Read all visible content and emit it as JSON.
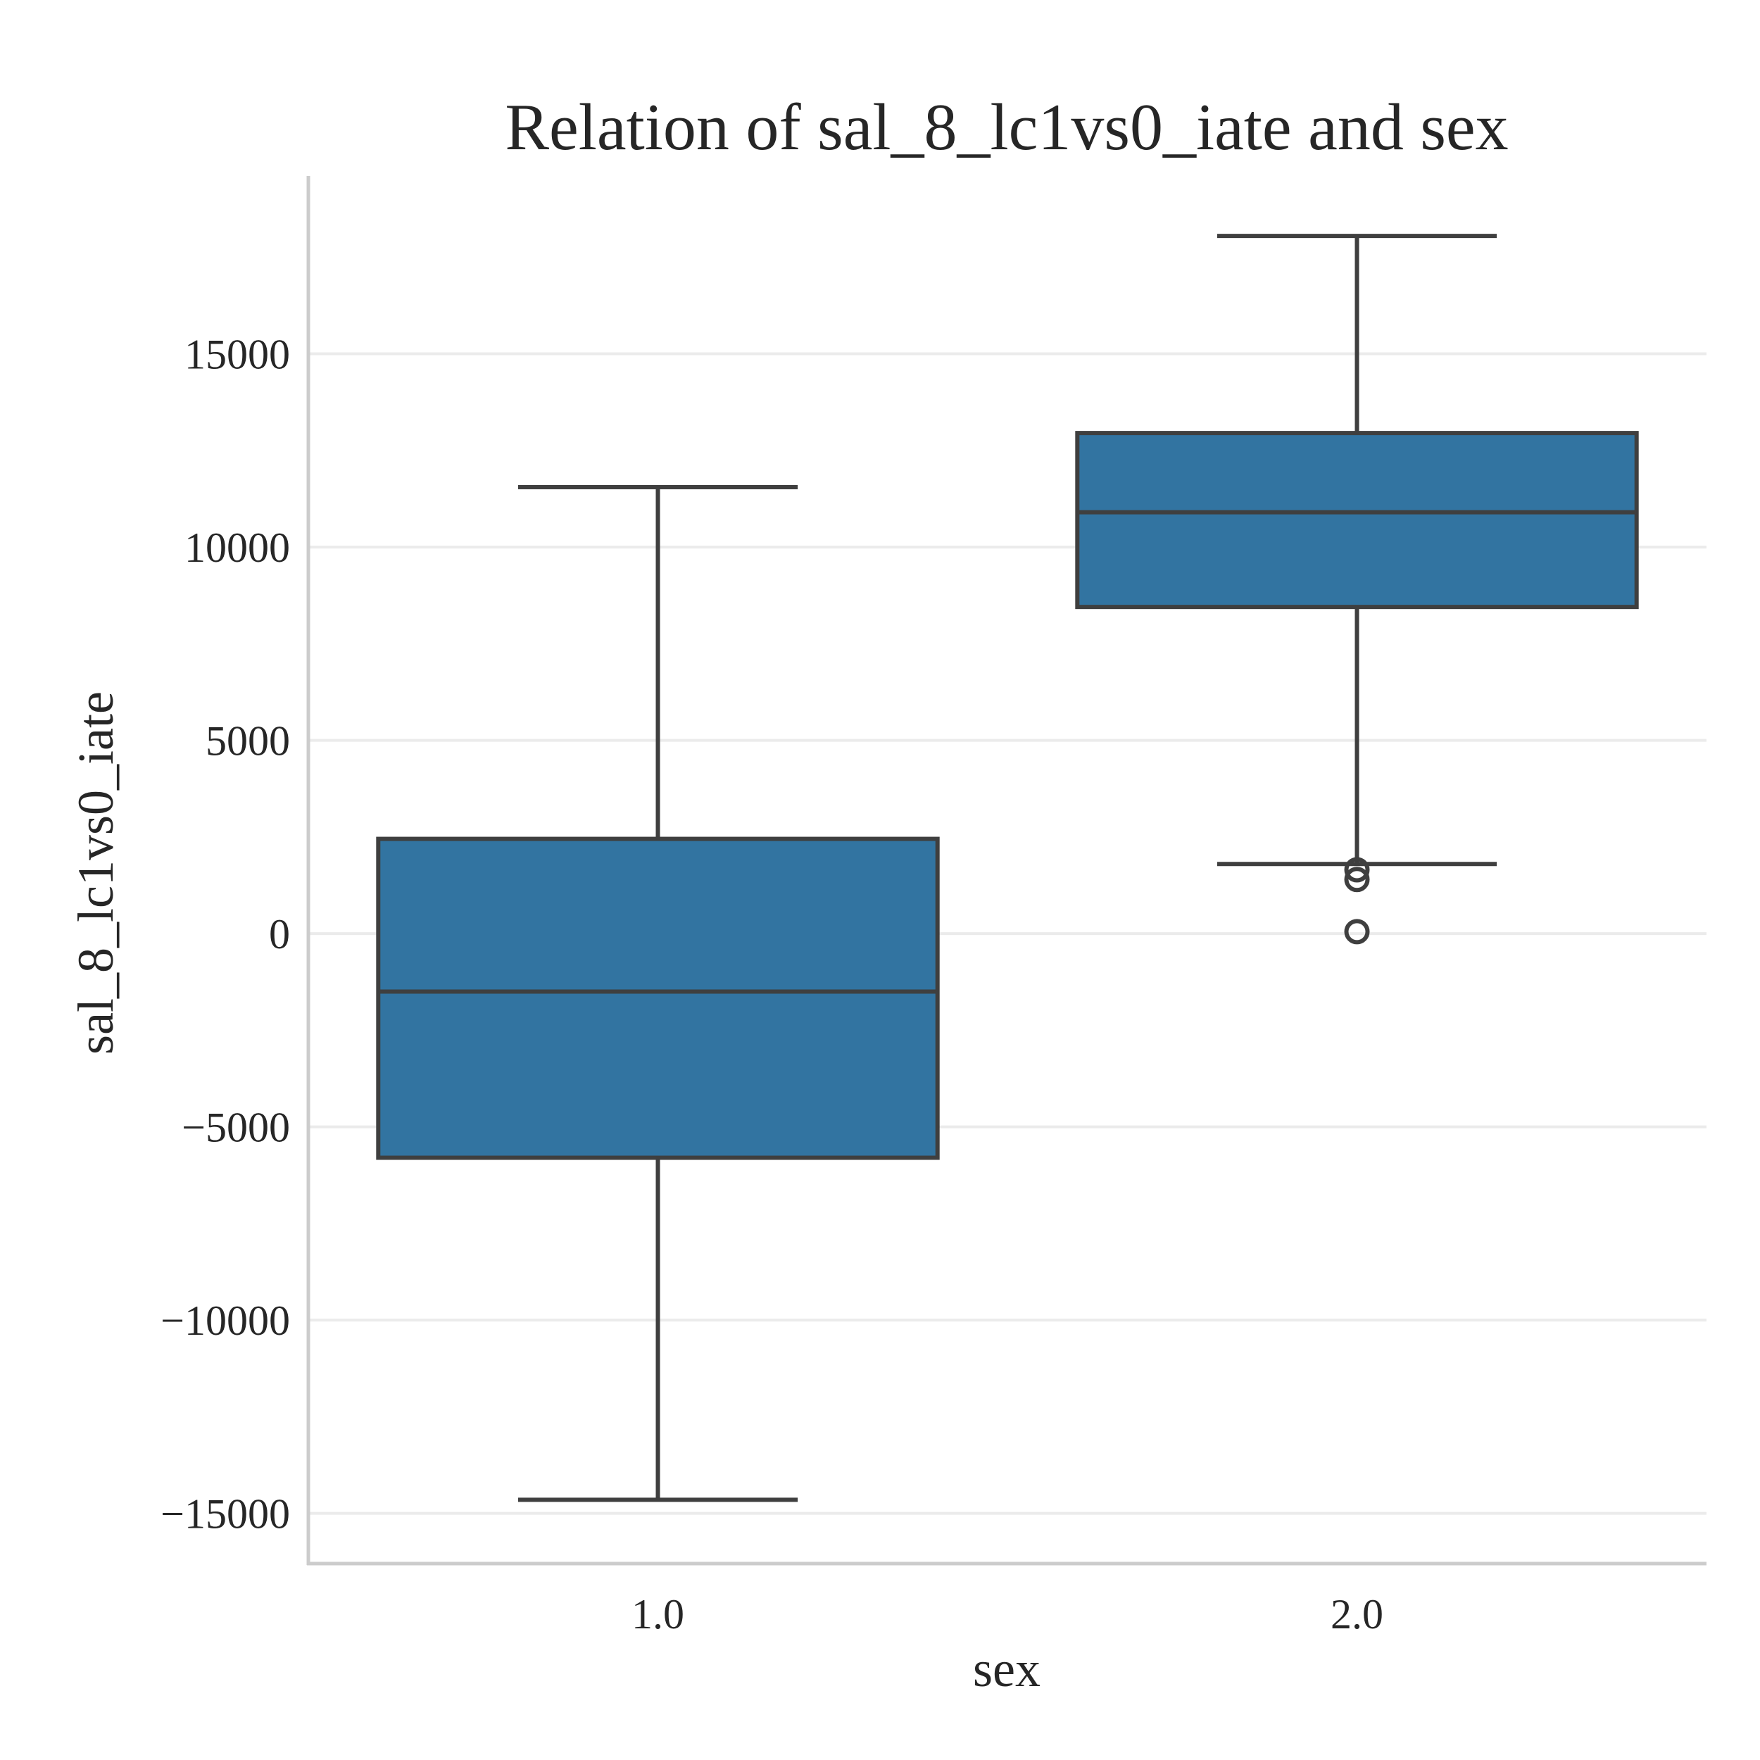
{
  "chart_data": {
    "type": "box",
    "title": "Relation of sal_8_lc1vs0_iate and sex",
    "xlabel": "sex",
    "ylabel": "sal_8_lc1vs0_iate",
    "categories": [
      "1.0",
      "2.0"
    ],
    "ylim": [
      -16300,
      19600
    ],
    "yticks": [
      -15000,
      -10000,
      -5000,
      0,
      5000,
      10000,
      15000
    ],
    "ytick_labels": [
      "−15000",
      "−10000",
      "−5000",
      "0",
      "5000",
      "10000",
      "15000"
    ],
    "grid": true,
    "box_color": "#3274a1",
    "boxes": [
      {
        "category": "1.0",
        "whisker_low": -14650,
        "q1": -5800,
        "median": -1500,
        "q3": 2450,
        "whisker_high": 11550,
        "outliers": []
      },
      {
        "category": "2.0",
        "whisker_low": 1800,
        "q1": 8450,
        "median": 10900,
        "q3": 12950,
        "whisker_high": 18050,
        "outliers": [
          1650,
          1400,
          50
        ]
      }
    ]
  }
}
